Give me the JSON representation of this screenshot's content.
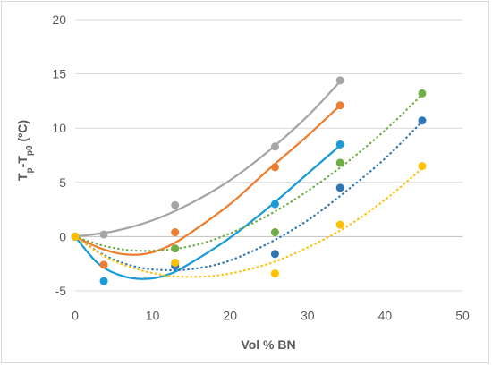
{
  "chart_data": {
    "type": "scatter",
    "title": "",
    "xlabel": "Vol % BN",
    "ylabel": {
      "base": "T",
      "sub1": "p",
      "mid": "-T",
      "sub2": "p0",
      "unit": " (ºC)"
    },
    "xlim": [
      0,
      50
    ],
    "ylim": [
      -5,
      20
    ],
    "xticks": [
      0,
      10,
      20,
      30,
      40,
      50
    ],
    "yticks": [
      -5,
      0,
      5,
      10,
      15,
      20
    ],
    "grid": "horizontal",
    "legend": "none",
    "series": [
      {
        "color": "#a5a5a5",
        "trend": "solid",
        "points": [
          [
            0,
            0
          ],
          [
            3.7,
            0.2
          ],
          [
            12.9,
            2.9
          ],
          [
            25.8,
            8.3
          ],
          [
            34.2,
            14.4
          ]
        ],
        "curve": [
          [
            0,
            0
          ],
          [
            5,
            0.5
          ],
          [
            10,
            1.5
          ],
          [
            15,
            3.1
          ],
          [
            20,
            5.2
          ],
          [
            25,
            7.9
          ],
          [
            30,
            11.1
          ],
          [
            34.2,
            14.3
          ]
        ]
      },
      {
        "color": "#ed7d31",
        "trend": "solid",
        "points": [
          [
            0,
            0
          ],
          [
            3.7,
            -2.6
          ],
          [
            12.9,
            0.4
          ],
          [
            25.8,
            6.4
          ],
          [
            34.2,
            12.1
          ]
        ],
        "curve": [
          [
            0,
            0
          ],
          [
            3,
            -1.0
          ],
          [
            6,
            -1.6
          ],
          [
            9,
            -1.6
          ],
          [
            12,
            -0.9
          ],
          [
            15,
            0.4
          ],
          [
            20,
            3.0
          ],
          [
            25,
            6.2
          ],
          [
            30,
            9.3
          ],
          [
            34.2,
            12.1
          ]
        ]
      },
      {
        "color": "#1a9ad6",
        "trend": "solid",
        "points": [
          [
            0,
            0
          ],
          [
            3.7,
            -4.1
          ],
          [
            12.9,
            -2.4
          ],
          [
            25.8,
            3.0
          ],
          [
            34.2,
            8.5
          ]
        ],
        "curve": [
          [
            0,
            0
          ],
          [
            3,
            -2.5
          ],
          [
            6,
            -3.6
          ],
          [
            9,
            -3.9
          ],
          [
            12,
            -3.5
          ],
          [
            15,
            -2.4
          ],
          [
            20,
            -0.1
          ],
          [
            25,
            2.7
          ],
          [
            30,
            5.8
          ],
          [
            34.2,
            8.4
          ]
        ]
      },
      {
        "color": "#70ad47",
        "trend": "dotted",
        "points": [
          [
            0,
            0
          ],
          [
            12.9,
            -1.1
          ],
          [
            25.8,
            0.4
          ],
          [
            34.2,
            6.8
          ],
          [
            44.8,
            13.2
          ]
        ],
        "curve": [
          [
            0,
            0
          ],
          [
            4,
            -0.9
          ],
          [
            8,
            -1.3
          ],
          [
            12,
            -1.2
          ],
          [
            16,
            -0.7
          ],
          [
            20,
            0.3
          ],
          [
            25,
            2.0
          ],
          [
            30,
            4.2
          ],
          [
            35,
            6.8
          ],
          [
            40,
            9.8
          ],
          [
            44.8,
            13.1
          ]
        ]
      },
      {
        "color": "#2e75b6",
        "trend": "dotted",
        "points": [
          [
            0,
            0
          ],
          [
            12.9,
            -2.7
          ],
          [
            25.8,
            -1.6
          ],
          [
            34.2,
            4.5
          ],
          [
            44.8,
            10.7
          ]
        ],
        "curve": [
          [
            0,
            0
          ],
          [
            4,
            -1.8
          ],
          [
            8,
            -2.8
          ],
          [
            12,
            -3.1
          ],
          [
            16,
            -2.9
          ],
          [
            20,
            -2.2
          ],
          [
            25,
            -0.6
          ],
          [
            30,
            1.5
          ],
          [
            35,
            4.2
          ],
          [
            40,
            7.2
          ],
          [
            44.8,
            10.6
          ]
        ]
      },
      {
        "color": "#ffc000",
        "trend": "dotted",
        "points": [
          [
            0,
            0
          ],
          [
            12.9,
            -2.4
          ],
          [
            25.8,
            -3.4
          ],
          [
            34.2,
            1.1
          ],
          [
            44.8,
            6.5
          ]
        ],
        "curve": [
          [
            0,
            0
          ],
          [
            4,
            -1.9
          ],
          [
            8,
            -3.0
          ],
          [
            12,
            -3.6
          ],
          [
            16,
            -3.7
          ],
          [
            20,
            -3.4
          ],
          [
            25,
            -2.5
          ],
          [
            30,
            -1.0
          ],
          [
            35,
            0.9
          ],
          [
            40,
            3.4
          ],
          [
            44.8,
            6.3
          ]
        ]
      }
    ]
  }
}
